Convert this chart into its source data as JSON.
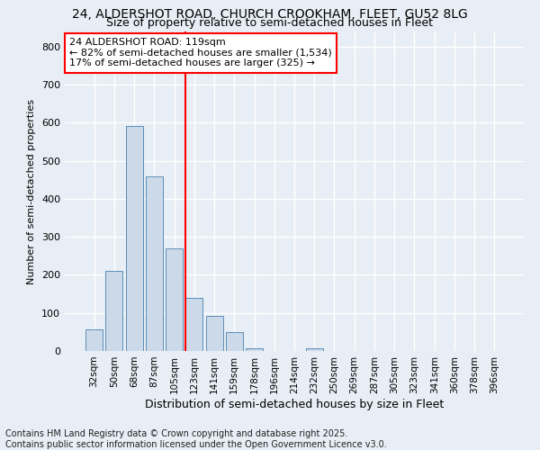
{
  "title_line1": "24, ALDERSHOT ROAD, CHURCH CROOKHAM, FLEET, GU52 8LG",
  "title_line2": "Size of property relative to semi-detached houses in Fleet",
  "xlabel": "Distribution of semi-detached houses by size in Fleet",
  "ylabel": "Number of semi-detached properties",
  "categories": [
    "32sqm",
    "50sqm",
    "68sqm",
    "87sqm",
    "105sqm",
    "123sqm",
    "141sqm",
    "159sqm",
    "178sqm",
    "196sqm",
    "214sqm",
    "232sqm",
    "250sqm",
    "269sqm",
    "287sqm",
    "305sqm",
    "323sqm",
    "341sqm",
    "360sqm",
    "378sqm",
    "396sqm"
  ],
  "values": [
    57,
    210,
    592,
    460,
    270,
    140,
    92,
    50,
    8,
    0,
    0,
    8,
    0,
    0,
    0,
    0,
    0,
    0,
    0,
    0,
    0
  ],
  "bar_color": "#ccd9e8",
  "bar_edge_color": "#5b8db8",
  "vline_color": "red",
  "vline_x_index": 5,
  "annotation_text": "24 ALDERSHOT ROAD: 119sqm\n← 82% of semi-detached houses are smaller (1,534)\n17% of semi-detached houses are larger (325) →",
  "annotation_box_color": "white",
  "annotation_box_edge_color": "red",
  "ylim": [
    0,
    840
  ],
  "yticks": [
    0,
    100,
    200,
    300,
    400,
    500,
    600,
    700,
    800
  ],
  "footnote": "Contains HM Land Registry data © Crown copyright and database right 2025.\nContains public sector information licensed under the Open Government Licence v3.0.",
  "bg_color": "#e8eef5",
  "plot_bg_color": "#e8eef5",
  "grid_color": "white",
  "title_fontsize": 10,
  "subtitle_fontsize": 9,
  "footnote_fontsize": 7,
  "annotation_fontsize": 8
}
